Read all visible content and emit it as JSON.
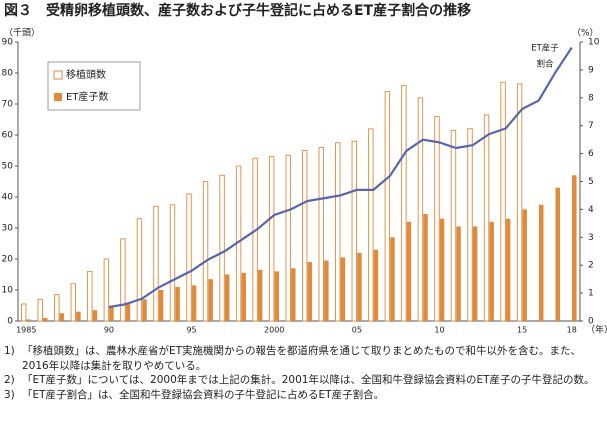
{
  "chart_data": {
    "type": "bar_line",
    "title": "図３　受精卵移植頭数、産子数および子牛登記に占めるET産子割合の推移",
    "y_label": "（千頭）",
    "y2_label": "（%）",
    "x_label": "（年）",
    "categories": [
      "1985",
      null,
      null,
      null,
      null,
      "90",
      null,
      null,
      null,
      null,
      "95",
      null,
      null,
      null,
      null,
      "2000",
      null,
      null,
      null,
      null,
      "05",
      null,
      null,
      null,
      null,
      "10",
      null,
      null,
      null,
      null,
      "15",
      null,
      null,
      "18"
    ],
    "series": [
      {
        "name": "移植頭数",
        "color": "#e08a3c",
        "style": "outline",
        "values": [
          5.5,
          7,
          8.5,
          12,
          16,
          20,
          26.5,
          33,
          37,
          37.5,
          41,
          45,
          47,
          50,
          52.5,
          53,
          53.5,
          55,
          56,
          57.5,
          58,
          62,
          74,
          76,
          72,
          66,
          61.5,
          62,
          66.5,
          77,
          76.5,
          null,
          null,
          null
        ]
      },
      {
        "name": "ET産子数",
        "color": "#e08a3c",
        "style": "filled",
        "values": [
          0.5,
          1,
          2.5,
          3,
          3.5,
          5,
          6,
          7,
          10,
          11,
          11.5,
          13.5,
          15,
          15.5,
          16.5,
          16,
          17,
          19,
          19.5,
          20.5,
          22,
          23,
          27,
          32,
          34.5,
          33,
          30.5,
          30.5,
          32,
          33,
          36,
          37.5,
          43,
          47
        ]
      },
      {
        "color": "#5566b0",
        "axis": "y2",
        "style": "line",
        "values": [
          null,
          null,
          null,
          null,
          null,
          0.5,
          0.6,
          0.8,
          1.2,
          1.5,
          1.8,
          2.2,
          2.5,
          2.9,
          3.3,
          3.8,
          4.0,
          4.3,
          4.4,
          4.5,
          4.7,
          4.7,
          5.2,
          6.1,
          6.5,
          6.4,
          6.2,
          6.3,
          6.7,
          6.9,
          7.6,
          7.9,
          8.9,
          9.8
        ]
      }
    ],
    "line_annotation": [
      "ET産子",
      "割合"
    ],
    "ylim": [
      0,
      90
    ],
    "yticks": [
      0,
      10,
      20,
      30,
      40,
      50,
      60,
      70,
      80,
      90
    ],
    "y2lim": [
      0,
      10
    ],
    "y2ticks": [
      0,
      1,
      2,
      3,
      4,
      5,
      6,
      7,
      8,
      9,
      10
    ],
    "notes": [
      {
        "num": "1)",
        "text": "「移植頭数」は、農林水産省がET実施機関からの報告を都道府県を通じて取りまとめたもので和牛以外を含む。また、2016年以降は集計を取りやめている。"
      },
      {
        "num": "2)",
        "text": "「ET産子数」については、2000年までは上記の集計。2001年以降は、全国和牛登録協会資料のET産子の子牛登記の数。"
      },
      {
        "num": "3)",
        "text": "「ET産子割合」は、全国和牛登録協会資料の子牛登記に占めるET産子割合。"
      }
    ]
  }
}
